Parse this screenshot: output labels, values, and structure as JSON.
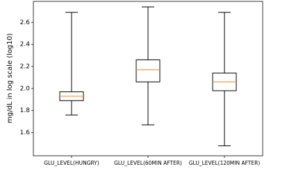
{
  "chart_data": {
    "type": "box",
    "y_label": "mg/dL in log scale (log10)",
    "categories": [
      "GLU_LEVEL(HUNGRY)",
      "GLU_LEVEL(60MIN AFTER)",
      "GLU_LEVEL(120MIN AFTER)"
    ],
    "boxes": [
      {
        "min": 1.76,
        "q1": 1.89,
        "median": 1.93,
        "q3": 1.97,
        "max": 2.69
      },
      {
        "min": 1.67,
        "q1": 2.06,
        "median": 2.17,
        "q3": 2.26,
        "max": 2.74
      },
      {
        "min": 1.48,
        "q1": 1.98,
        "median": 2.06,
        "q3": 2.14,
        "max": 2.69
      }
    ],
    "box_color": "#000000",
    "median_color": "#ff7f0e",
    "ylim": [
      1.39,
      2.79
    ],
    "yticks": [
      1.6,
      1.8,
      {
        "value": 2,
        "label": "2.0"
      },
      2.2,
      2.4,
      2.6
    ]
  }
}
